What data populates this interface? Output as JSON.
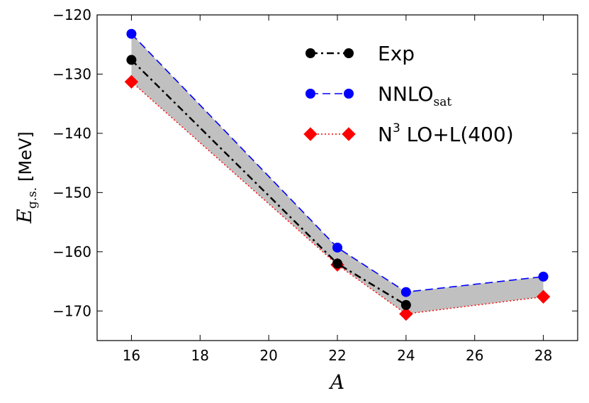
{
  "chart_data": {
    "type": "line",
    "title": "",
    "xlabel": "A",
    "ylabel_symbol": "E",
    "ylabel_subscript": "g.s.",
    "ylabel_unit": "[MeV]",
    "xlim": [
      15,
      29
    ],
    "ylim": [
      -175,
      -120
    ],
    "xticks": [
      16,
      18,
      20,
      22,
      24,
      26,
      28
    ],
    "yticks": [
      -170,
      -160,
      -150,
      -140,
      -130,
      -120
    ],
    "ytick_labels": [
      "−170",
      "−160",
      "−150",
      "−140",
      "−130",
      "−120"
    ],
    "band": {
      "description_color": "#c0c0c0",
      "x": [
        16,
        22,
        24,
        28
      ],
      "upper_series": "NNLO_sat",
      "lower_series": "N3LO+L(400)"
    },
    "series": [
      {
        "name": "Exp",
        "legend_main": "Exp",
        "legend_sub": "",
        "legend_sup": "",
        "color": "#000000",
        "marker": "circle",
        "linestyle": "dashdot",
        "x": [
          16,
          22,
          24
        ],
        "values": [
          -127.6,
          -162.0,
          -169.0
        ]
      },
      {
        "name": "NNLO_sat",
        "legend_main": "NNLO",
        "legend_sub": "sat",
        "legend_sup": "",
        "color": "#0000ff",
        "marker": "circle",
        "linestyle": "dashed",
        "x": [
          16,
          22,
          24,
          28
        ],
        "values": [
          -123.2,
          -159.3,
          -166.8,
          -164.2
        ]
      },
      {
        "name": "N3LO+L(400)",
        "legend_main": "N",
        "legend_sub": "",
        "legend_sup": "3",
        "legend_rest": " LO+L(400)",
        "color": "#ff0000",
        "marker": "diamond",
        "linestyle": "dotted",
        "x": [
          16,
          22,
          24,
          28
        ],
        "values": [
          -131.3,
          -162.2,
          -170.5,
          -167.6
        ]
      }
    ],
    "legend_position": "top-right"
  }
}
